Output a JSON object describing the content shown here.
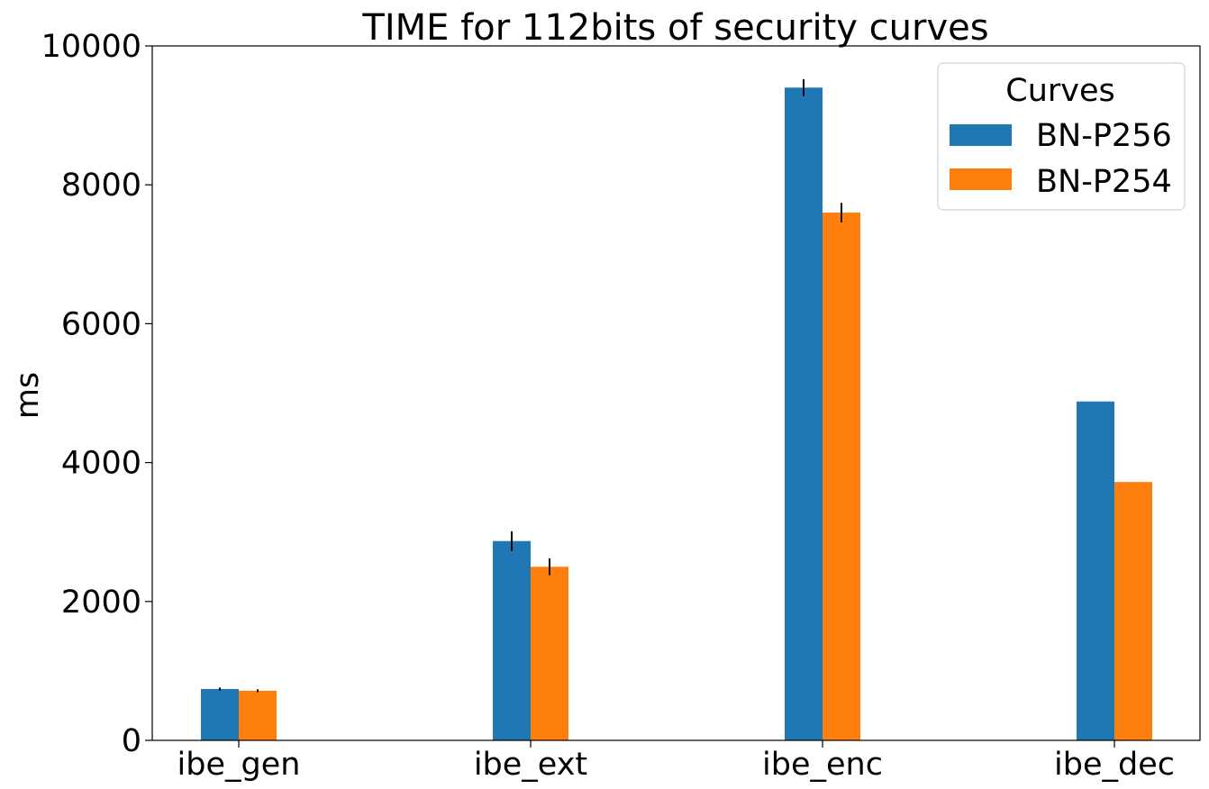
{
  "chart_data": {
    "type": "bar",
    "title": "TIME for 112bits of security curves",
    "xlabel": "",
    "ylabel": "ms",
    "categories": [
      "ibe_gen",
      "ibe_ext",
      "ibe_enc",
      "ibe_dec"
    ],
    "ylim": [
      0,
      10000
    ],
    "yticks": [
      0,
      2000,
      4000,
      6000,
      8000,
      10000
    ],
    "grid": false,
    "legend": {
      "title": "Curves",
      "placement": "top-right"
    },
    "series": [
      {
        "name": "BN-P256",
        "color": "#1f77b4",
        "values": [
          740,
          2870,
          9400,
          4880
        ],
        "errors": [
          20,
          140,
          120,
          0
        ]
      },
      {
        "name": "BN-P254",
        "color": "#ff7f0e",
        "values": [
          715,
          2500,
          7600,
          3720
        ],
        "errors": [
          20,
          120,
          140,
          0
        ]
      }
    ]
  }
}
